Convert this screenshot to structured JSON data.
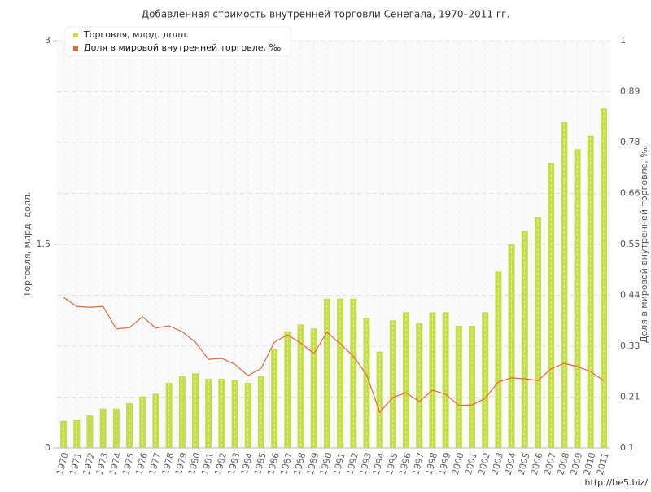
{
  "chart_data": {
    "type": "bar-line",
    "title": "Добавленная стоимость внутренней торговли Сенегала, 1970–2011 гг.",
    "y_label": "Торговля, млрд. долл.",
    "y2_label": "Доля в мировой внутренней торговле, ‰",
    "watermark": "http://be5.biz/",
    "categories": [
      "1970",
      "1971",
      "1972",
      "1973",
      "1974",
      "1975",
      "1976",
      "1977",
      "1978",
      "1979",
      "1980",
      "1981",
      "1982",
      "1983",
      "1984",
      "1985",
      "1986",
      "1987",
      "1988",
      "1989",
      "1990",
      "1991",
      "1992",
      "1993",
      "1994",
      "1995",
      "1996",
      "1997",
      "1998",
      "1999",
      "2000",
      "2001",
      "2002",
      "2003",
      "2004",
      "2005",
      "2006",
      "2007",
      "2008",
      "2009",
      "2010",
      "2011"
    ],
    "series": [
      {
        "name": "Торговля, млрд. долл.",
        "color": "#c5dd4a",
        "kind": "bar",
        "values": [
          0.2,
          0.21,
          0.24,
          0.29,
          0.29,
          0.33,
          0.38,
          0.4,
          0.48,
          0.53,
          0.55,
          0.51,
          0.51,
          0.5,
          0.48,
          0.53,
          0.73,
          0.86,
          0.91,
          0.88,
          1.1,
          1.1,
          1.1,
          0.96,
          0.71,
          0.94,
          1.0,
          0.92,
          1.0,
          1.0,
          0.9,
          0.9,
          1.0,
          1.3,
          1.5,
          1.6,
          1.7,
          2.1,
          2.4,
          2.2,
          2.3,
          2.5
        ]
      },
      {
        "name": "Доля в мировой внутренней торговле, ‰",
        "color": "#e2683c",
        "kind": "line",
        "axis": "y2",
        "values": [
          0.433,
          0.413,
          0.411,
          0.413,
          0.363,
          0.366,
          0.39,
          0.365,
          0.37,
          0.357,
          0.334,
          0.296,
          0.298,
          0.285,
          0.26,
          0.276,
          0.334,
          0.35,
          0.332,
          0.309,
          0.356,
          0.33,
          0.303,
          0.262,
          0.179,
          0.212,
          0.222,
          0.203,
          0.228,
          0.219,
          0.194,
          0.195,
          0.21,
          0.246,
          0.255,
          0.253,
          0.249,
          0.275,
          0.287,
          0.28,
          0.269,
          0.249
        ]
      }
    ],
    "ylim": [
      0,
      3
    ],
    "yticks": [
      0,
      1.5,
      3
    ],
    "y2lim": [
      0.1,
      1
    ],
    "y2ticks": [
      0.1,
      {
        "value": 0.2125,
        "label": "0.21"
      },
      {
        "value": 0.325,
        "label": "0.33"
      },
      {
        "value": 0.4375,
        "label": "0.44"
      },
      0.55,
      {
        "value": 0.6625,
        "label": "0.66"
      },
      {
        "value": 0.775,
        "label": "0.78"
      },
      {
        "value": 0.8875,
        "label": "0.89"
      },
      1
    ],
    "grid": true
  }
}
